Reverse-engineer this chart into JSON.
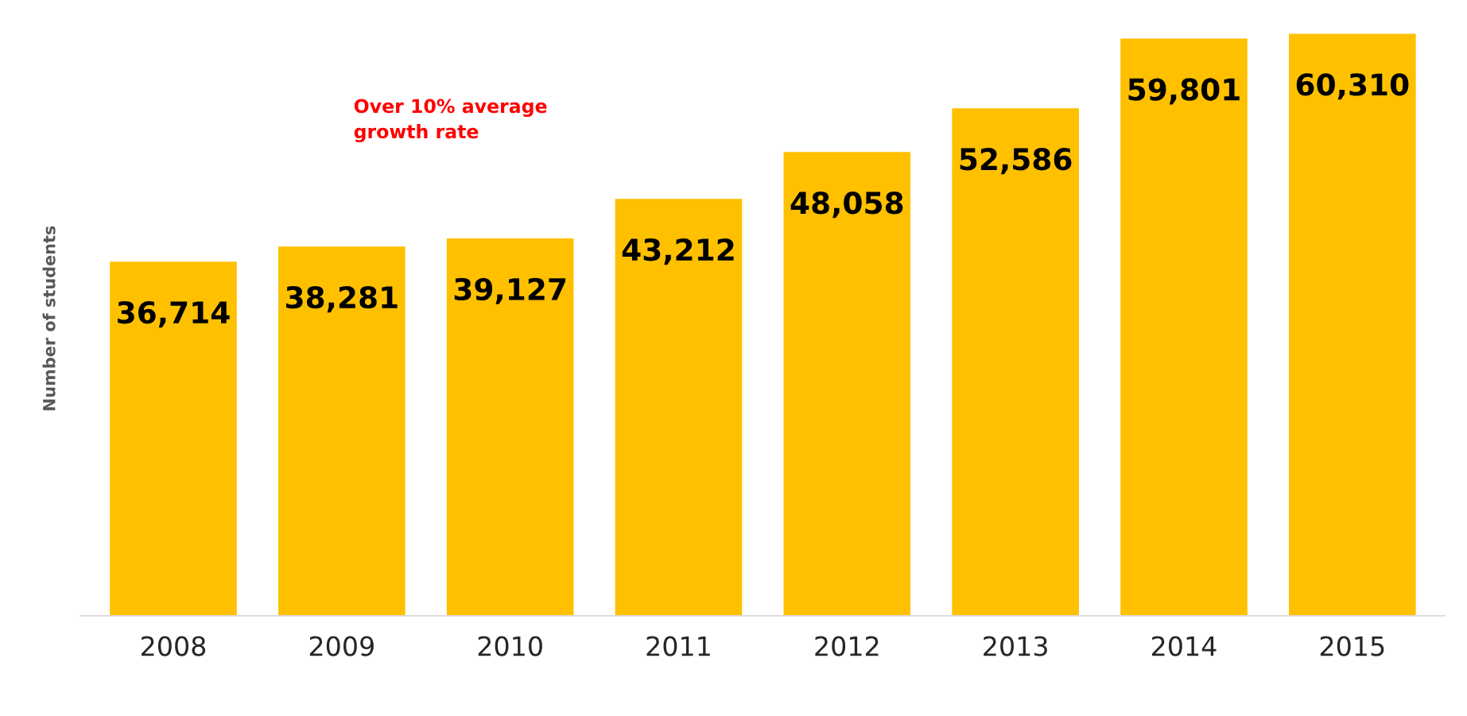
{
  "chart_data": {
    "type": "bar",
    "ylabel": "Number of students",
    "categories": [
      "2008",
      "2009",
      "2010",
      "2011",
      "2012",
      "2013",
      "2014",
      "2015"
    ],
    "values": [
      36714,
      38281,
      39127,
      43212,
      48058,
      52586,
      59801,
      60310
    ],
    "color": "#ffc000",
    "value_labels": [
      "36,714",
      "38,281",
      "39,127",
      "43,212",
      "48,058",
      "52,586",
      "59,801",
      "60,310"
    ],
    "grid": false,
    "legend": false,
    "annotations": [
      "Over 10% average\ngrowth rate"
    ]
  }
}
